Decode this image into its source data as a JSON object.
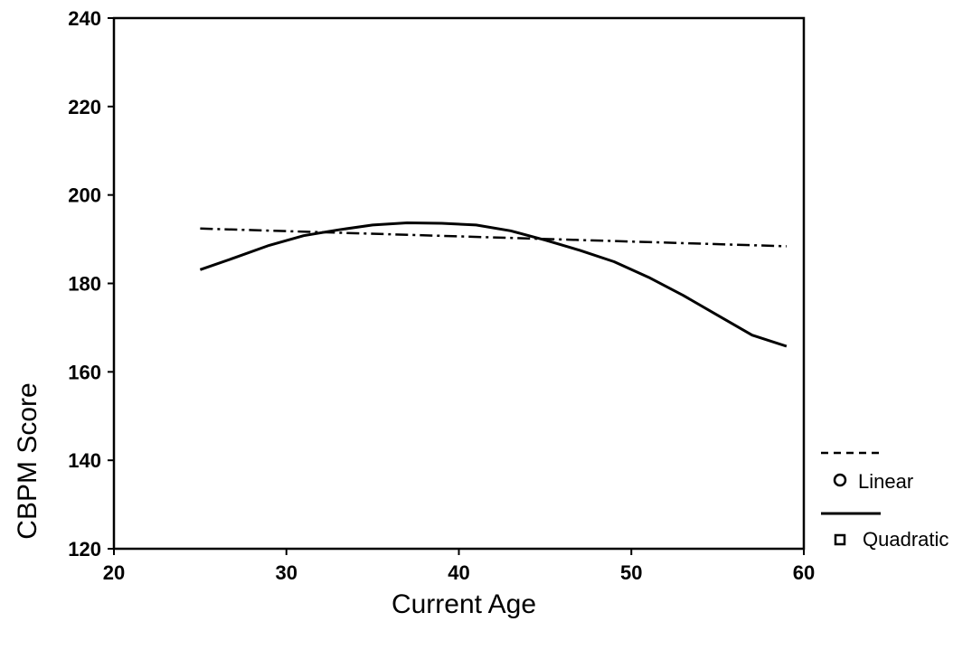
{
  "chart_data": {
    "type": "line",
    "title": "",
    "xlabel": "Current Age",
    "ylabel": "CBPM Score",
    "xlim": [
      20,
      60
    ],
    "ylim": [
      120,
      240
    ],
    "x_ticks": [
      20,
      30,
      40,
      50,
      60
    ],
    "y_ticks": [
      120,
      140,
      160,
      180,
      200,
      220,
      240
    ],
    "grid": false,
    "legend_position": "right",
    "series": [
      {
        "name": "Linear",
        "style": "dash-dot",
        "marker": "circle",
        "x": [
          25,
          59
        ],
        "y": [
          192.4,
          188.4
        ]
      },
      {
        "name": "Quadratic",
        "style": "solid",
        "marker": "square",
        "x": [
          25,
          27,
          29,
          31,
          33,
          35,
          37,
          39,
          41,
          43,
          45,
          47,
          49,
          51,
          53,
          55,
          57,
          59
        ],
        "y": [
          183.1,
          185.8,
          188.6,
          190.8,
          192.1,
          193.2,
          193.7,
          193.6,
          193.2,
          191.9,
          189.8,
          187.5,
          184.9,
          181.4,
          177.3,
          172.8,
          168.3,
          165.8
        ]
      }
    ]
  }
}
